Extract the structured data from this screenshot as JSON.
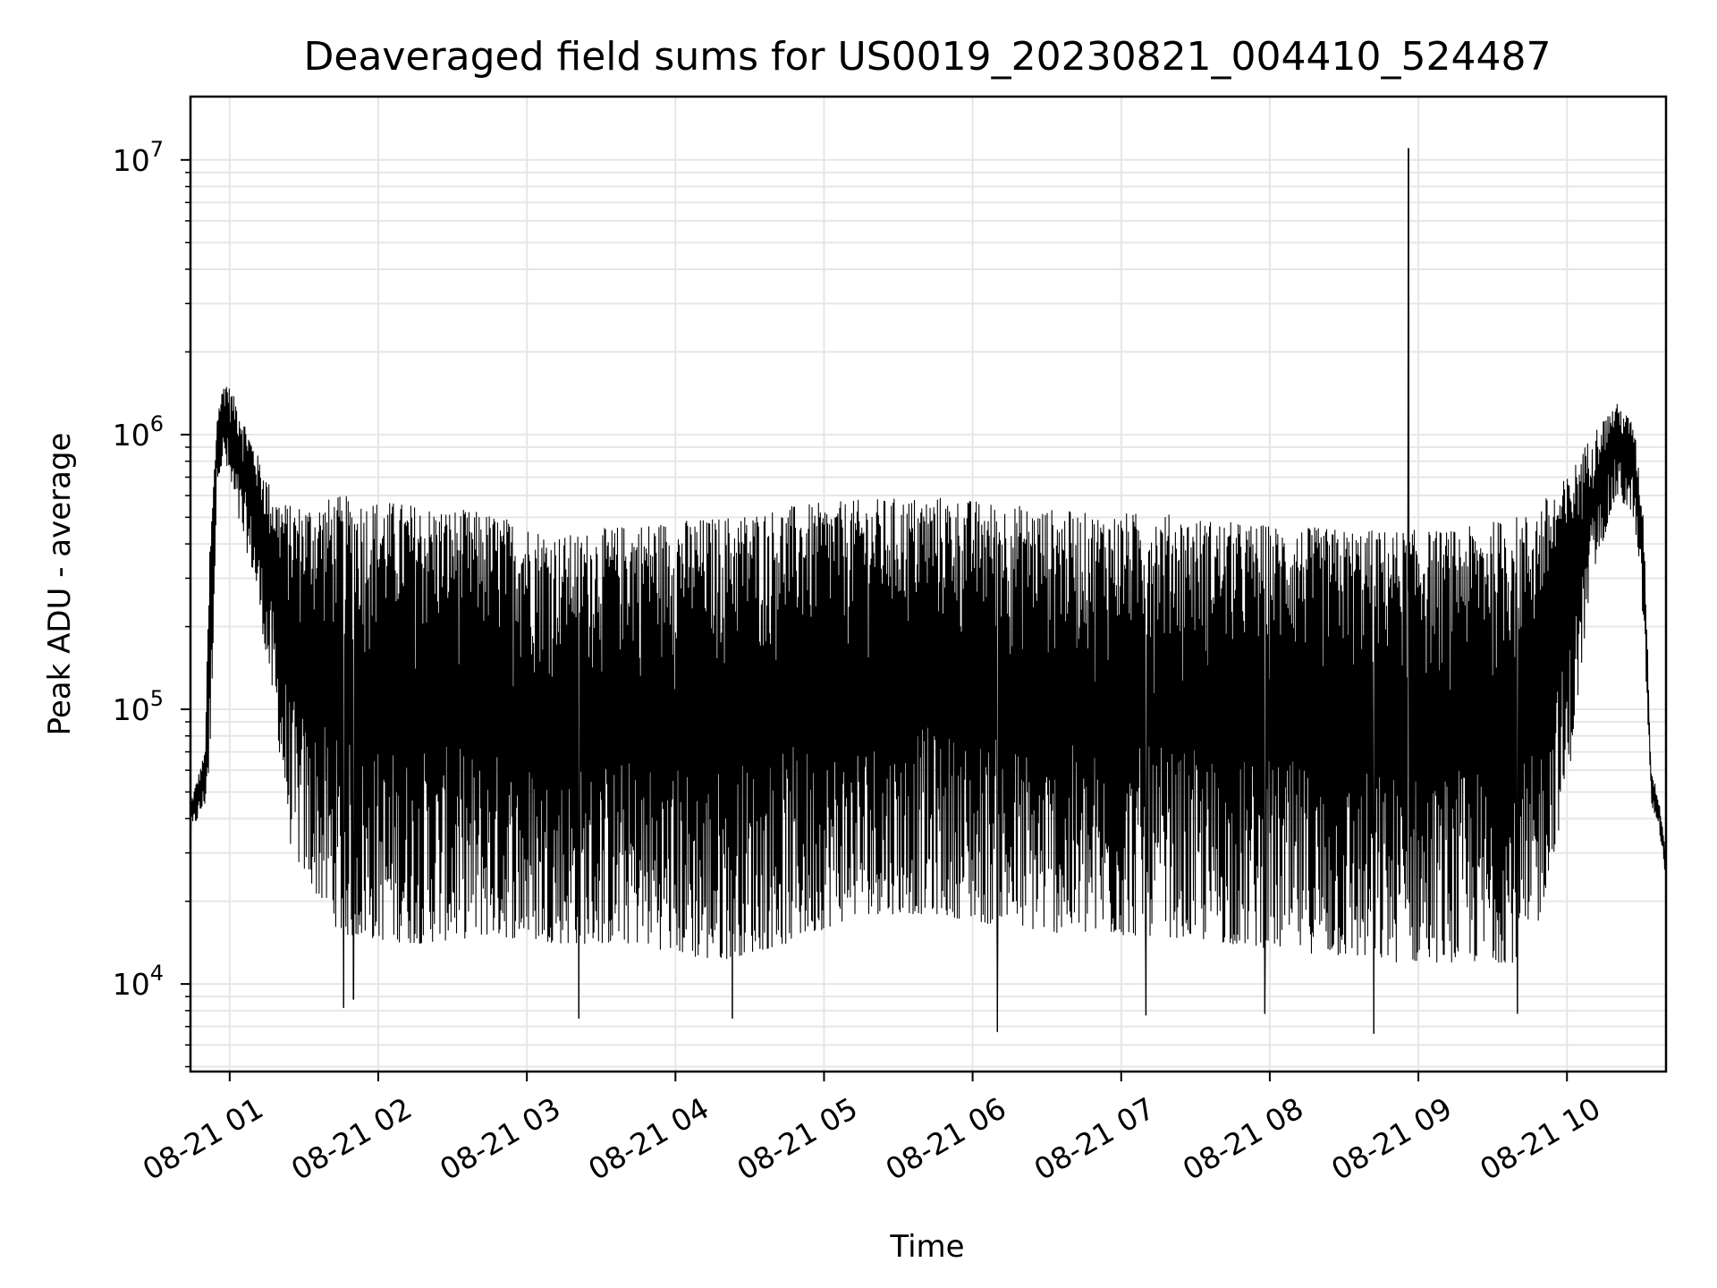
{
  "chart_data": {
    "type": "line",
    "title": "Deaveraged field sums for US0019_20230821_004410_524487",
    "xlabel": "Time",
    "ylabel": "Peak ADU - average",
    "yscale": "log",
    "ylim": [
      4800,
      17000000
    ],
    "xlim": [
      "2023-08-21 00:44:10",
      "2023-08-21 10:40:00"
    ],
    "grid": true,
    "line_color": "#000000",
    "grid_color": "#e6e6e6",
    "x_ticks": [
      {
        "time": "2023-08-21 01:00",
        "label": "08-21 01"
      },
      {
        "time": "2023-08-21 02:00",
        "label": "08-21 02"
      },
      {
        "time": "2023-08-21 03:00",
        "label": "08-21 03"
      },
      {
        "time": "2023-08-21 04:00",
        "label": "08-21 04"
      },
      {
        "time": "2023-08-21 05:00",
        "label": "08-21 05"
      },
      {
        "time": "2023-08-21 06:00",
        "label": "08-21 06"
      },
      {
        "time": "2023-08-21 07:00",
        "label": "08-21 07"
      },
      {
        "time": "2023-08-21 08:00",
        "label": "08-21 08"
      },
      {
        "time": "2023-08-21 09:00",
        "label": "08-21 09"
      },
      {
        "time": "2023-08-21 10:00",
        "label": "08-21 10"
      }
    ],
    "y_ticks": [
      {
        "value": 10000,
        "base": "10",
        "exp": "4"
      },
      {
        "value": 100000,
        "base": "10",
        "exp": "5"
      },
      {
        "value": 1000000,
        "base": "10",
        "exp": "6"
      },
      {
        "value": 10000000,
        "base": "10",
        "exp": "7"
      }
    ],
    "series": [
      {
        "envelope": [
          {
            "time": "2023-08-21 00:44",
            "low": 35000,
            "high": 45000
          },
          {
            "time": "2023-08-21 00:50",
            "low": 45000,
            "high": 70000
          },
          {
            "time": "2023-08-21 00:52",
            "low": 60000,
            "high": 400000
          },
          {
            "time": "2023-08-21 00:55",
            "low": 700000,
            "high": 1200000
          },
          {
            "time": "2023-08-21 00:58",
            "low": 800000,
            "high": 1600000
          },
          {
            "time": "2023-08-21 01:03",
            "low": 500000,
            "high": 1300000
          },
          {
            "time": "2023-08-21 01:10",
            "low": 300000,
            "high": 900000
          },
          {
            "time": "2023-08-21 01:18",
            "low": 100000,
            "high": 600000
          },
          {
            "time": "2023-08-21 01:25",
            "low": 30000,
            "high": 550000
          },
          {
            "time": "2023-08-21 01:45",
            "low": 15000,
            "high": 600000
          },
          {
            "time": "2023-08-21 02:15",
            "low": 14000,
            "high": 560000
          },
          {
            "time": "2023-08-21 02:45",
            "low": 15000,
            "high": 520000
          },
          {
            "time": "2023-08-21 03:15",
            "low": 14000,
            "high": 430000
          },
          {
            "time": "2023-08-21 03:45",
            "low": 14000,
            "high": 480000
          },
          {
            "time": "2023-08-21 04:15",
            "low": 12000,
            "high": 500000
          },
          {
            "time": "2023-08-21 04:45",
            "low": 14000,
            "high": 550000
          },
          {
            "time": "2023-08-21 05:15",
            "low": 18000,
            "high": 580000
          },
          {
            "time": "2023-08-21 05:45",
            "low": 18000,
            "high": 600000
          },
          {
            "time": "2023-08-21 06:15",
            "low": 16000,
            "high": 560000
          },
          {
            "time": "2023-08-21 06:45",
            "low": 15000,
            "high": 520000
          },
          {
            "time": "2023-08-21 07:15",
            "low": 15000,
            "high": 520000
          },
          {
            "time": "2023-08-21 07:45",
            "low": 14000,
            "high": 480000
          },
          {
            "time": "2023-08-21 08:15",
            "low": 13000,
            "high": 460000
          },
          {
            "time": "2023-08-21 08:45",
            "low": 12000,
            "high": 450000
          },
          {
            "time": "2023-08-21 09:15",
            "low": 12000,
            "high": 450000
          },
          {
            "time": "2023-08-21 09:45",
            "low": 12000,
            "high": 520000
          },
          {
            "time": "2023-08-21 10:00",
            "low": 50000,
            "high": 700000
          },
          {
            "time": "2023-08-21 10:10",
            "low": 300000,
            "high": 1000000
          },
          {
            "time": "2023-08-21 10:20",
            "low": 600000,
            "high": 1300000
          },
          {
            "time": "2023-08-21 10:27",
            "low": 500000,
            "high": 1100000
          },
          {
            "time": "2023-08-21 10:31",
            "low": 200000,
            "high": 500000
          },
          {
            "time": "2023-08-21 10:34",
            "low": 45000,
            "high": 60000
          },
          {
            "time": "2023-08-21 10:37",
            "low": 38000,
            "high": 48000
          },
          {
            "time": "2023-08-21 10:40",
            "low": 24000,
            "high": 30000
          }
        ],
        "spikes": [
          {
            "time": "2023-08-21 01:46",
            "value": 8200
          },
          {
            "time": "2023-08-21 01:50",
            "value": 8800
          },
          {
            "time": "2023-08-21 03:21",
            "value": 7500
          },
          {
            "time": "2023-08-21 04:23",
            "value": 7500
          },
          {
            "time": "2023-08-21 06:10",
            "value": 6700
          },
          {
            "time": "2023-08-21 07:10",
            "value": 7700
          },
          {
            "time": "2023-08-21 07:58",
            "value": 7800
          },
          {
            "time": "2023-08-21 08:42",
            "value": 6600
          },
          {
            "time": "2023-08-21 08:56",
            "value": 11000000
          },
          {
            "time": "2023-08-21 09:40",
            "value": 7800
          }
        ]
      }
    ]
  }
}
